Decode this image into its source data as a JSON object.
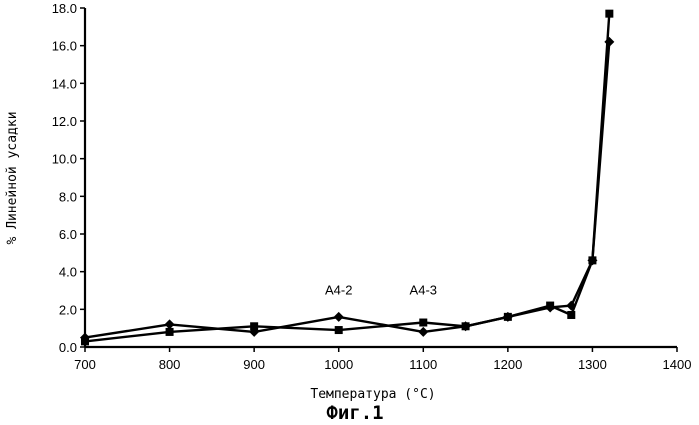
{
  "chart_data": {
    "type": "line",
    "xlabel": "Температура (°C)",
    "ylabel": "% Линейной усадки",
    "caption": "Фиг.1",
    "xlim": [
      700,
      1400
    ],
    "ylim": [
      0,
      18
    ],
    "xticks": [
      "700",
      "800",
      "900",
      "1000",
      "1100",
      "1200",
      "1300",
      "1400"
    ],
    "yticks": [
      "0.0",
      "2.0",
      "4.0",
      "6.0",
      "8.0",
      "10.0",
      "12.0",
      "14.0",
      "16.0",
      "18.0"
    ],
    "annotations": [
      {
        "text": "A4-2",
        "x": 1000,
        "y": 2.8
      },
      {
        "text": "A4-3",
        "x": 1100,
        "y": 2.8
      }
    ],
    "series": [
      {
        "marker": "diamond",
        "x": [
          700,
          800,
          900,
          1000,
          1100,
          1150,
          1200,
          1250,
          1275,
          1300,
          1320
        ],
        "y": [
          0.5,
          1.2,
          0.8,
          1.6,
          0.8,
          1.1,
          1.6,
          2.1,
          2.2,
          4.6,
          16.2
        ]
      },
      {
        "marker": "square",
        "x": [
          700,
          800,
          900,
          1000,
          1100,
          1150,
          1200,
          1250,
          1275,
          1300,
          1320
        ],
        "y": [
          0.3,
          0.8,
          1.1,
          0.9,
          1.3,
          1.1,
          1.6,
          2.2,
          1.7,
          4.6,
          17.7
        ]
      }
    ]
  }
}
